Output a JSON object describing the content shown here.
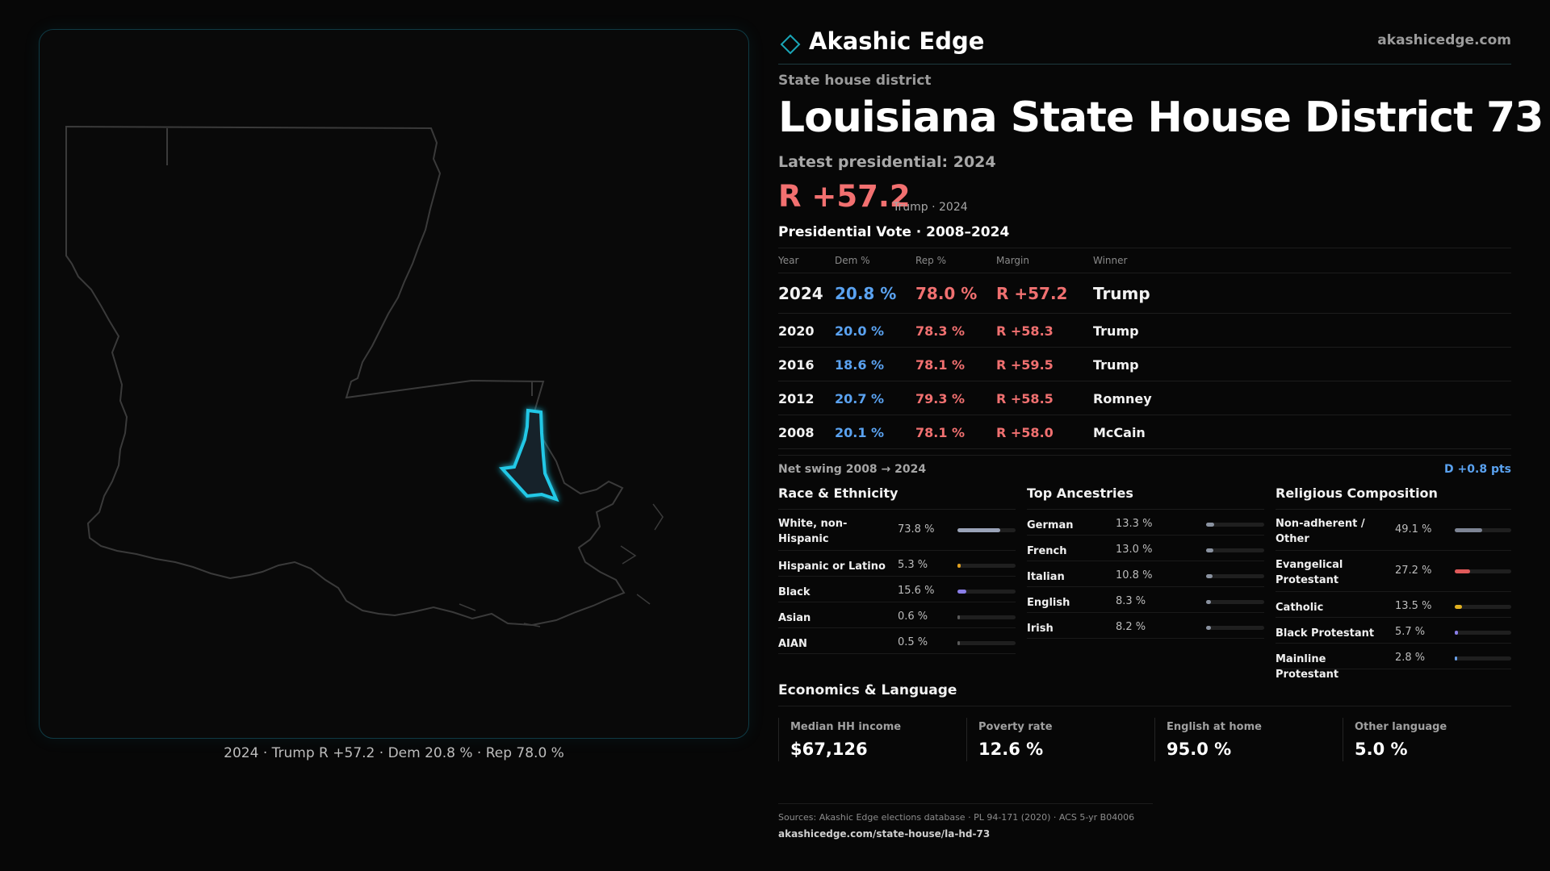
{
  "brand": {
    "name": "Akashic Edge",
    "site": "akashicedge.com",
    "logo_icon": "diamond-outline-icon",
    "accent": "#1aa6b7"
  },
  "header": {
    "kind": "State house district",
    "title": "Louisiana State House District 73",
    "latest_label": "Latest presidential: 2024",
    "margin": "R +57.2",
    "margin_sub": "Trump · 2024"
  },
  "map": {
    "caption": "2024 · Trump R +57.2 · Dem 20.8 % · Rep 78.0 %",
    "state_outline_color": "#3a3a3a",
    "district_color": "#22c8e6"
  },
  "votes": {
    "title": "Presidential Vote · 2008–2024",
    "headers": {
      "year": "Year",
      "dem": "Dem %",
      "rep": "Rep %",
      "margin": "Margin",
      "winner": "Winner"
    },
    "rows": [
      {
        "year": "2024",
        "dem": "20.8 %",
        "rep": "78.0 %",
        "margin": "R +57.2",
        "winner": "Trump"
      },
      {
        "year": "2020",
        "dem": "20.0 %",
        "rep": "78.3 %",
        "margin": "R +58.3",
        "winner": "Trump"
      },
      {
        "year": "2016",
        "dem": "18.6 %",
        "rep": "78.1 %",
        "margin": "R +59.5",
        "winner": "Trump"
      },
      {
        "year": "2012",
        "dem": "20.7 %",
        "rep": "79.3 %",
        "margin": "R +58.5",
        "winner": "Romney"
      },
      {
        "year": "2008",
        "dem": "20.1 %",
        "rep": "78.1 %",
        "margin": "R +58.0",
        "winner": "McCain"
      }
    ],
    "swing_label": "Net swing 2008 → 2024",
    "swing_value": "D +0.8 pts"
  },
  "race": {
    "title": "Race & Ethnicity",
    "rows": [
      {
        "label": "White, non-Hispanic",
        "value": "73.8 %",
        "pct": 73.8,
        "color": "#9aa3b8",
        "tall": true
      },
      {
        "label": "Hispanic or Latino",
        "value": "5.3 %",
        "pct": 5.3,
        "color": "#e0a020"
      },
      {
        "label": "Black",
        "value": "15.6 %",
        "pct": 15.6,
        "color": "#8a7ee8"
      },
      {
        "label": "Asian",
        "value": "0.6 %",
        "pct": 0.6,
        "color": "#5a5a5a"
      },
      {
        "label": "AIAN",
        "value": "0.5 %",
        "pct": 0.5,
        "color": "#5a5a5a"
      }
    ]
  },
  "ancestry": {
    "title": "Top Ancestries",
    "rows": [
      {
        "label": "German",
        "value": "13.3 %",
        "pct": 13.3,
        "color": "#8a92a0"
      },
      {
        "label": "French",
        "value": "13.0 %",
        "pct": 13.0,
        "color": "#8a92a0"
      },
      {
        "label": "Italian",
        "value": "10.8 %",
        "pct": 10.8,
        "color": "#8a92a0"
      },
      {
        "label": "English",
        "value": "8.3 %",
        "pct": 8.3,
        "color": "#8a92a0"
      },
      {
        "label": "Irish",
        "value": "8.2 %",
        "pct": 8.2,
        "color": "#8a92a0"
      }
    ]
  },
  "religion": {
    "title": "Religious Composition",
    "rows": [
      {
        "label": "Non-adherent / Other",
        "value": "49.1 %",
        "pct": 49.1,
        "color": "#7d8494",
        "tall": true
      },
      {
        "label": "Evangelical Protestant",
        "value": "27.2 %",
        "pct": 27.2,
        "color": "#e05a5a",
        "tall": true
      },
      {
        "label": "Catholic",
        "value": "13.5 %",
        "pct": 13.5,
        "color": "#e0b020"
      },
      {
        "label": "Black Protestant",
        "value": "5.7 %",
        "pct": 5.7,
        "color": "#8a7ee8"
      },
      {
        "label": "Mainline Protestant",
        "value": "2.8 %",
        "pct": 2.8,
        "color": "#6aa0e8"
      }
    ]
  },
  "economics": {
    "title": "Economics & Language",
    "cells": [
      {
        "label": "Median HH income",
        "value": "$67,126"
      },
      {
        "label": "Poverty rate",
        "value": "12.6 %"
      },
      {
        "label": "English at home",
        "value": "95.0 %"
      },
      {
        "label": "Other language",
        "value": "5.0 %"
      }
    ]
  },
  "sources": {
    "line1": "Sources: Akashic Edge elections database · PL 94-171 (2020) · ACS 5-yr B04006",
    "line2": "akashicedge.com/state-house/la-hd-73"
  }
}
